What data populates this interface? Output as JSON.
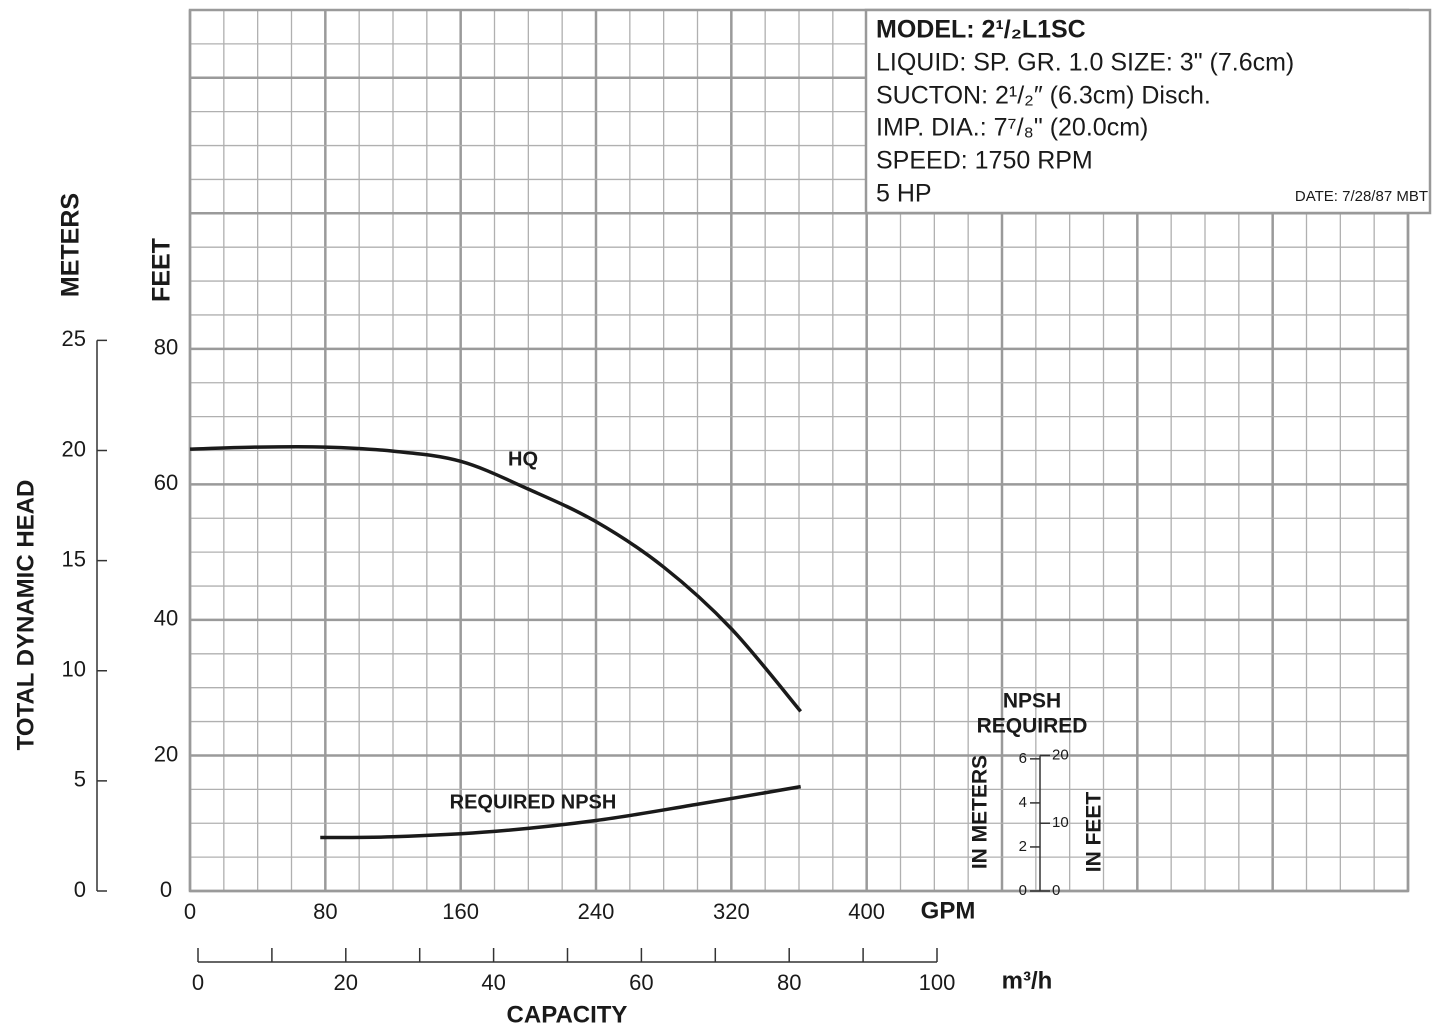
{
  "title_box": {
    "model": "MODEL: 2¹/₂L1SC",
    "liquid": "LIQUID: SP. GR. 1.0  SIZE: 3\" (7.6cm)",
    "suction": "SUCTON: 2¹/₂″ (6.3cm) Disch.",
    "impeller": "IMP. DIA.: 7⁷/₈\" (20.0cm)",
    "speed": "SPEED: 1750 RPM",
    "power": "5 HP",
    "date": "DATE: 7/28/87  MBT"
  },
  "chart_data": {
    "type": "line",
    "y_label": "TOTAL DYNAMIC HEAD",
    "y_unit": "FEET",
    "y2_unit": "METERS",
    "x_unit": "GPM",
    "x2_unit": "m³/h",
    "x_label": "CAPACITY",
    "series": [
      {
        "name": "HQ",
        "color": "#1a1a1a",
        "x": [
          0,
          40,
          80,
          120,
          160,
          200,
          240,
          280,
          320,
          361
        ],
        "values": [
          65.2,
          65.5,
          65.5,
          64.9,
          63.4,
          59.3,
          54.5,
          47.8,
          38.7,
          26.5
        ]
      },
      {
        "name": "REQUIRED NPSH",
        "color": "#1a1a1a",
        "x": [
          77,
          120,
          180,
          240,
          300,
          361
        ],
        "values": [
          7.9,
          8.0,
          8.8,
          10.4,
          12.8,
          15.4
        ]
      }
    ],
    "xlim": [
      0,
      720
    ],
    "xticks": [
      0,
      80,
      160,
      240,
      320,
      400
    ],
    "ylim": [
      0,
      130
    ],
    "yticks": [
      0,
      20,
      40,
      60,
      80
    ],
    "y2lim": [
      0,
      40
    ],
    "y2ticks": [
      0,
      5,
      10,
      15,
      20,
      25
    ],
    "x2lim": [
      0,
      100
    ],
    "x2ticks": [
      0,
      20,
      40,
      60,
      80,
      100
    ],
    "grid": true,
    "npsh_scale": {
      "title": [
        "NPSH",
        "REQUIRED"
      ],
      "left_label": "IN METERS",
      "right_label": "IN FEET",
      "meters_ticks": [
        0,
        2,
        4,
        6
      ],
      "feet_ticks": [
        0,
        10,
        20
      ]
    }
  }
}
